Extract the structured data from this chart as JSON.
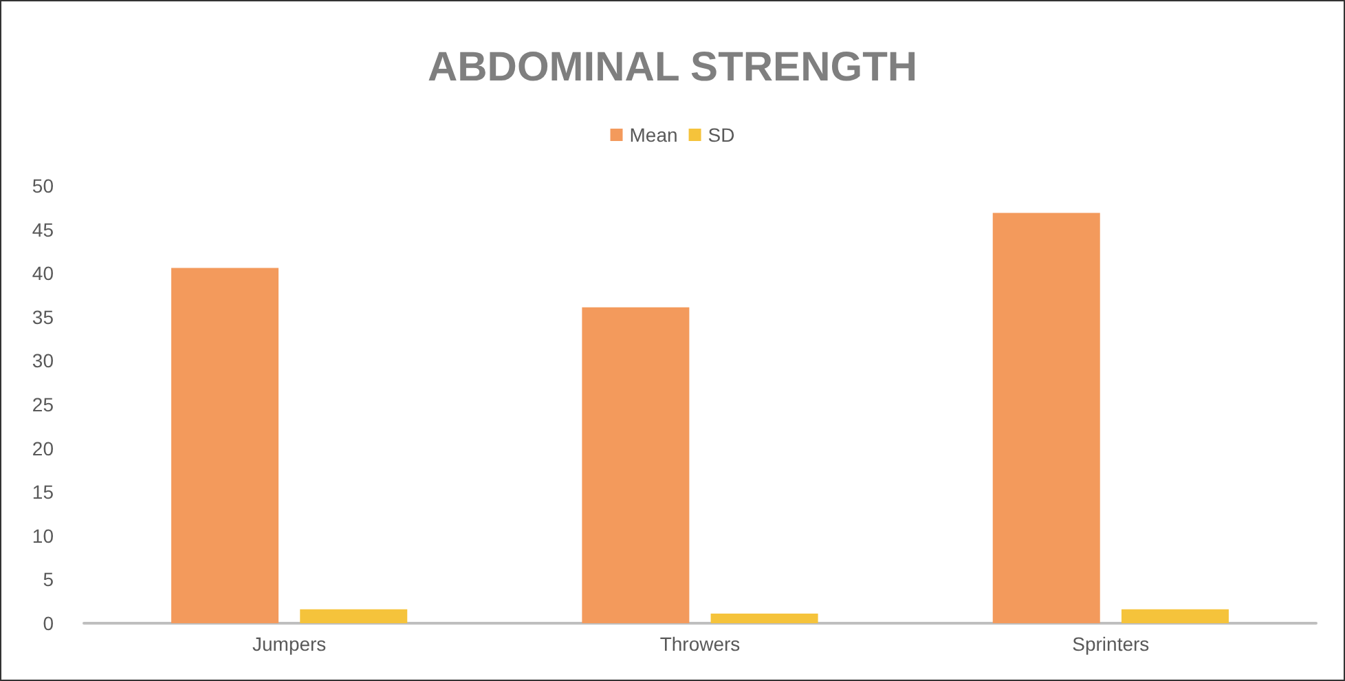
{
  "chart_data": {
    "type": "bar",
    "title": "ABDOMINAL STRENGTH",
    "categories": [
      "Jumpers",
      "Throwers",
      "Sprinters"
    ],
    "series": [
      {
        "name": "Mean",
        "color": "#f39a5c",
        "values": [
          40.6,
          36.1,
          46.9
        ]
      },
      {
        "name": "SD",
        "color": "#f5c33b",
        "values": [
          1.6,
          1.1,
          1.6
        ]
      }
    ],
    "ylim": [
      0,
      50
    ],
    "yticks": [
      0,
      5,
      10,
      15,
      20,
      25,
      30,
      35,
      40,
      45,
      50
    ],
    "grid": false,
    "legend": "top"
  }
}
